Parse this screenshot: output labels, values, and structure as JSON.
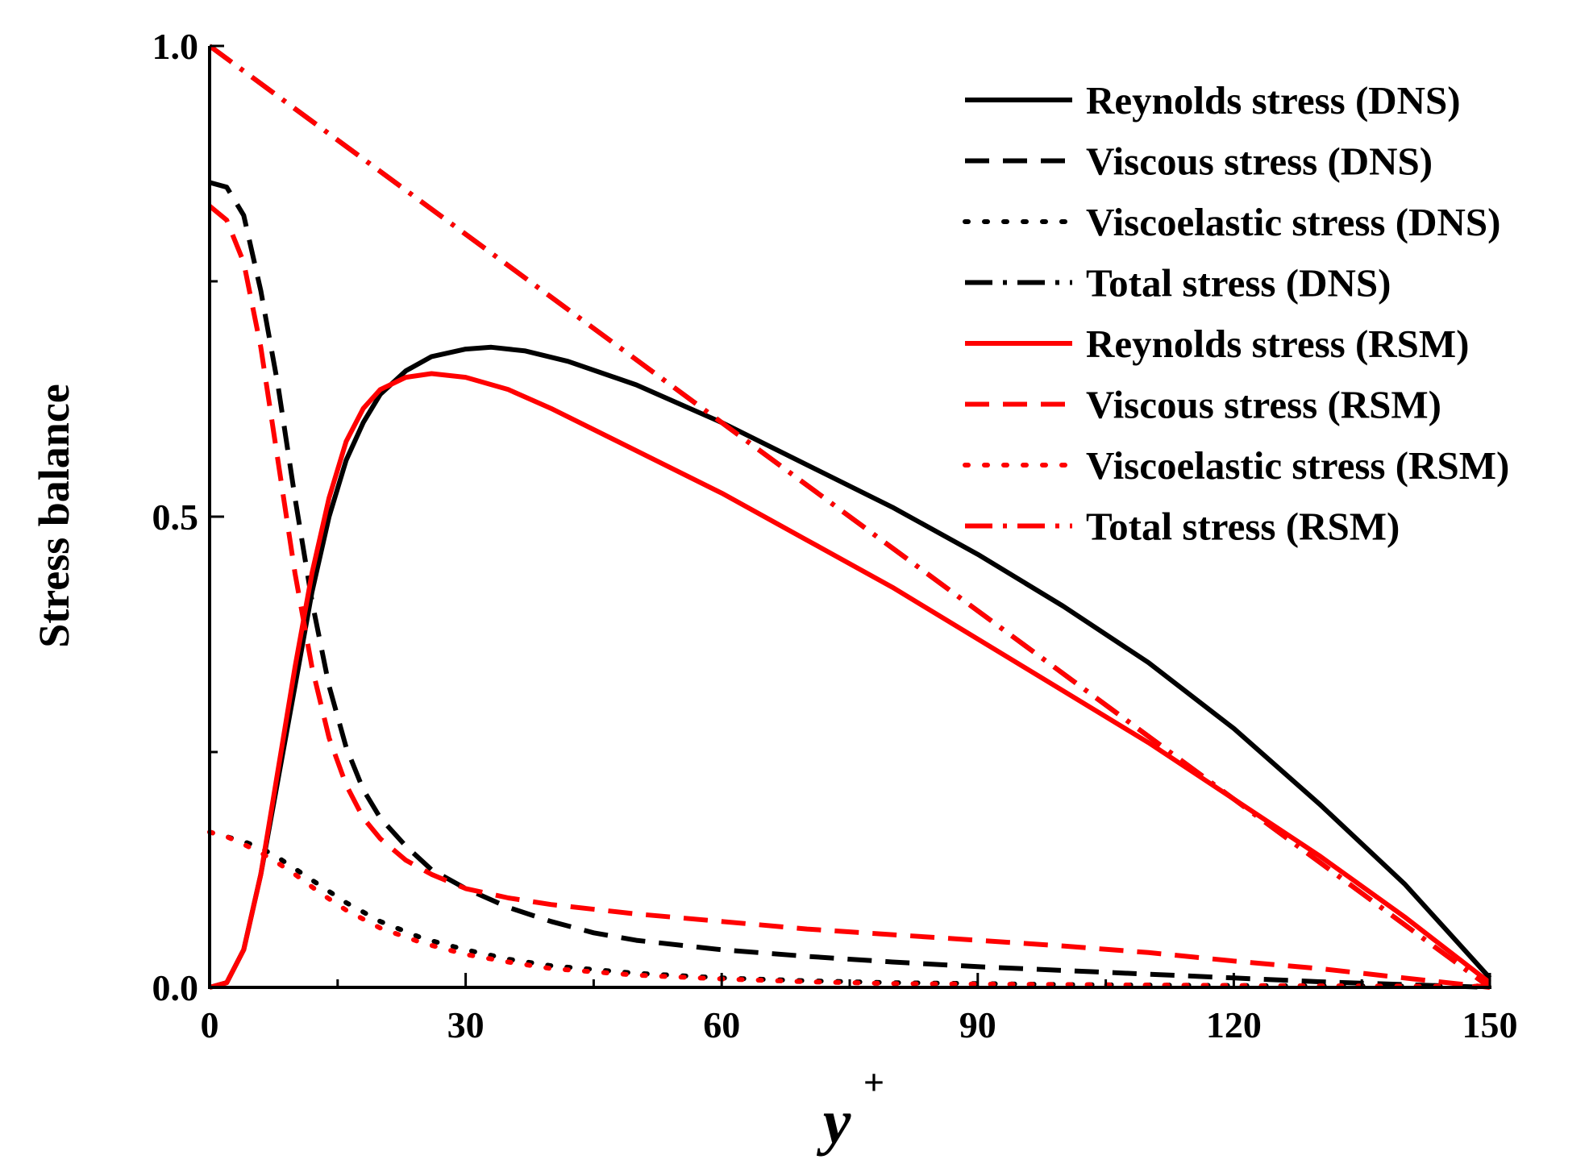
{
  "chart_data": {
    "type": "line",
    "title": "",
    "xlabel": "y",
    "xlabel_superscript": "+",
    "ylabel": "Stress balance",
    "xlim": [
      0,
      150
    ],
    "ylim": [
      0,
      1
    ],
    "xticks": [
      0,
      30,
      60,
      90,
      120,
      150
    ],
    "xtick_labels": [
      "0",
      "30",
      "60",
      "90",
      "120",
      "150"
    ],
    "yticks": [
      0,
      0.25,
      0.5,
      0.75,
      1.0
    ],
    "ytick_labels": [
      "0.0",
      "",
      "0.5",
      "",
      "1.0"
    ],
    "legend_position": "top-right",
    "series": [
      {
        "name": "Reynolds stress (DNS)",
        "color": "#000000",
        "style": "solid",
        "points": [
          [
            0,
            0
          ],
          [
            2,
            0.005
          ],
          [
            4,
            0.04
          ],
          [
            6,
            0.12
          ],
          [
            8,
            0.22
          ],
          [
            10,
            0.32
          ],
          [
            12,
            0.42
          ],
          [
            14,
            0.5
          ],
          [
            16,
            0.56
          ],
          [
            18,
            0.6
          ],
          [
            20,
            0.63
          ],
          [
            23,
            0.655
          ],
          [
            26,
            0.67
          ],
          [
            30,
            0.678
          ],
          [
            33,
            0.68
          ],
          [
            37,
            0.676
          ],
          [
            42,
            0.665
          ],
          [
            50,
            0.64
          ],
          [
            60,
            0.6
          ],
          [
            70,
            0.555
          ],
          [
            80,
            0.51
          ],
          [
            90,
            0.46
          ],
          [
            100,
            0.405
          ],
          [
            110,
            0.345
          ],
          [
            120,
            0.275
          ],
          [
            130,
            0.195
          ],
          [
            140,
            0.11
          ],
          [
            145,
            0.06
          ],
          [
            150,
            0.01
          ]
        ]
      },
      {
        "name": "Viscous stress (DNS)",
        "color": "#000000",
        "style": "dash",
        "points": [
          [
            0,
            0.855
          ],
          [
            2,
            0.85
          ],
          [
            4,
            0.82
          ],
          [
            6,
            0.74
          ],
          [
            8,
            0.64
          ],
          [
            10,
            0.52
          ],
          [
            12,
            0.41
          ],
          [
            14,
            0.32
          ],
          [
            16,
            0.255
          ],
          [
            18,
            0.21
          ],
          [
            20,
            0.18
          ],
          [
            23,
            0.15
          ],
          [
            26,
            0.125
          ],
          [
            30,
            0.105
          ],
          [
            35,
            0.085
          ],
          [
            40,
            0.07
          ],
          [
            45,
            0.058
          ],
          [
            50,
            0.05
          ],
          [
            60,
            0.04
          ],
          [
            70,
            0.033
          ],
          [
            80,
            0.027
          ],
          [
            90,
            0.022
          ],
          [
            100,
            0.018
          ],
          [
            110,
            0.014
          ],
          [
            120,
            0.01
          ],
          [
            130,
            0.006
          ],
          [
            140,
            0.003
          ],
          [
            150,
            0
          ]
        ]
      },
      {
        "name": "Viscoelastic stress (DNS)",
        "color": "#000000",
        "style": "dot",
        "points": [
          [
            0,
            0.165
          ],
          [
            2,
            0.16
          ],
          [
            4,
            0.155
          ],
          [
            6,
            0.148
          ],
          [
            8,
            0.138
          ],
          [
            10,
            0.126
          ],
          [
            13,
            0.108
          ],
          [
            16,
            0.09
          ],
          [
            20,
            0.07
          ],
          [
            25,
            0.052
          ],
          [
            30,
            0.04
          ],
          [
            35,
            0.03
          ],
          [
            40,
            0.023
          ],
          [
            50,
            0.015
          ],
          [
            60,
            0.01
          ],
          [
            70,
            0.007
          ],
          [
            80,
            0.005
          ],
          [
            90,
            0.004
          ],
          [
            100,
            0.003
          ],
          [
            120,
            0.002
          ],
          [
            150,
            0.001
          ]
        ]
      },
      {
        "name": "Total stress (DNS)",
        "color": "#000000",
        "style": "dashdot",
        "points": [
          [
            0,
            1.0
          ],
          [
            150,
            0.0
          ]
        ]
      },
      {
        "name": "Reynolds stress (RSM)",
        "color": "#ff0000",
        "style": "solid",
        "points": [
          [
            0,
            0
          ],
          [
            2,
            0.005
          ],
          [
            4,
            0.04
          ],
          [
            6,
            0.12
          ],
          [
            8,
            0.23
          ],
          [
            10,
            0.34
          ],
          [
            12,
            0.44
          ],
          [
            14,
            0.52
          ],
          [
            16,
            0.58
          ],
          [
            18,
            0.615
          ],
          [
            20,
            0.635
          ],
          [
            23,
            0.648
          ],
          [
            26,
            0.652
          ],
          [
            30,
            0.648
          ],
          [
            35,
            0.635
          ],
          [
            40,
            0.615
          ],
          [
            50,
            0.57
          ],
          [
            60,
            0.525
          ],
          [
            70,
            0.475
          ],
          [
            80,
            0.425
          ],
          [
            90,
            0.37
          ],
          [
            100,
            0.315
          ],
          [
            110,
            0.26
          ],
          [
            120,
            0.2
          ],
          [
            130,
            0.14
          ],
          [
            140,
            0.075
          ],
          [
            150,
            0.005
          ]
        ]
      },
      {
        "name": "Viscous stress (RSM)",
        "color": "#ff0000",
        "style": "dash",
        "points": [
          [
            0,
            0.83
          ],
          [
            2,
            0.815
          ],
          [
            4,
            0.77
          ],
          [
            6,
            0.68
          ],
          [
            8,
            0.56
          ],
          [
            10,
            0.44
          ],
          [
            12,
            0.34
          ],
          [
            14,
            0.265
          ],
          [
            16,
            0.215
          ],
          [
            18,
            0.18
          ],
          [
            20,
            0.158
          ],
          [
            23,
            0.135
          ],
          [
            26,
            0.12
          ],
          [
            30,
            0.105
          ],
          [
            35,
            0.095
          ],
          [
            40,
            0.088
          ],
          [
            50,
            0.078
          ],
          [
            60,
            0.07
          ],
          [
            70,
            0.062
          ],
          [
            80,
            0.056
          ],
          [
            90,
            0.05
          ],
          [
            100,
            0.044
          ],
          [
            110,
            0.037
          ],
          [
            120,
            0.028
          ],
          [
            130,
            0.02
          ],
          [
            140,
            0.01
          ],
          [
            150,
            0
          ]
        ]
      },
      {
        "name": "Viscoelastic stress (RSM)",
        "color": "#ff0000",
        "style": "dot",
        "points": [
          [
            0,
            0.165
          ],
          [
            2,
            0.16
          ],
          [
            4,
            0.152
          ],
          [
            6,
            0.143
          ],
          [
            8,
            0.132
          ],
          [
            10,
            0.12
          ],
          [
            13,
            0.1
          ],
          [
            16,
            0.082
          ],
          [
            20,
            0.063
          ],
          [
            25,
            0.047
          ],
          [
            30,
            0.035
          ],
          [
            35,
            0.027
          ],
          [
            40,
            0.02
          ],
          [
            50,
            0.013
          ],
          [
            60,
            0.009
          ],
          [
            70,
            0.006
          ],
          [
            80,
            0.004
          ],
          [
            100,
            0.003
          ],
          [
            120,
            0.002
          ],
          [
            150,
            0.001
          ]
        ]
      },
      {
        "name": "Total stress (RSM)",
        "color": "#ff0000",
        "style": "dashdot",
        "points": [
          [
            0,
            1.0
          ],
          [
            150,
            0.0
          ]
        ]
      }
    ]
  }
}
